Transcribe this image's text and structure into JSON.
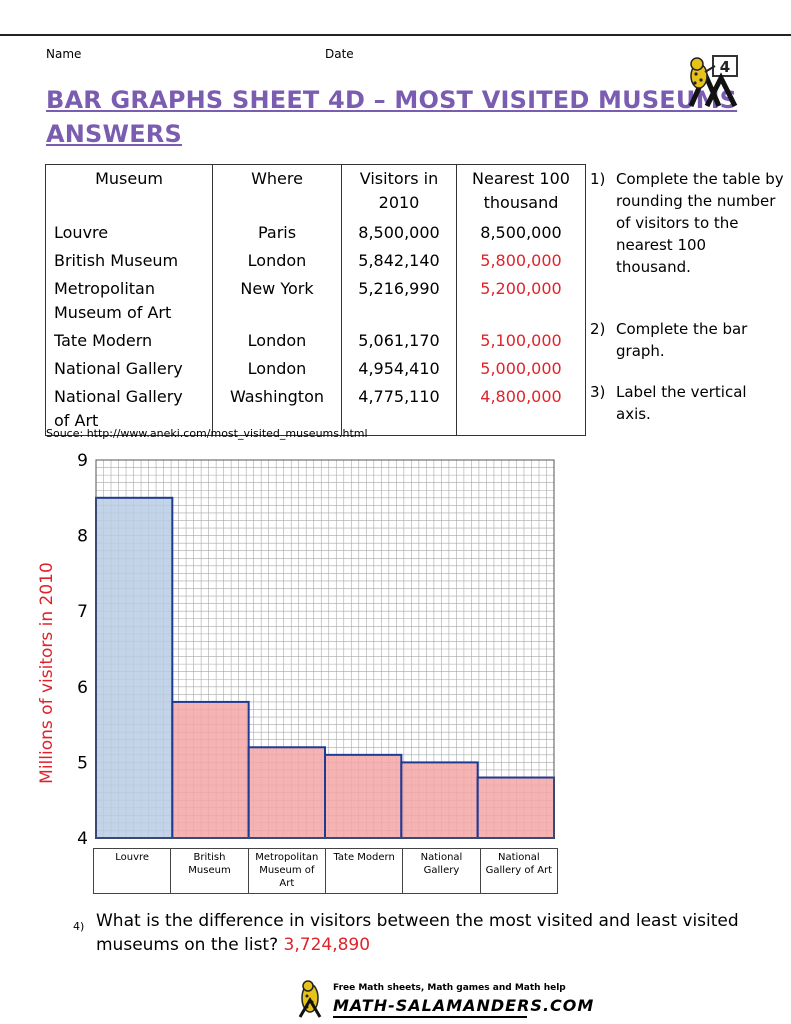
{
  "header": {
    "name_label": "Name",
    "date_label": "Date",
    "title_line1": "BAR GRAPHS SHEET 4D – MOST VISITED MUSEUMS",
    "title_line2": "ANSWERS",
    "logo_badge": "4"
  },
  "table": {
    "headers": {
      "museum": "Museum",
      "where": "Where",
      "visitors_line1": "Visitors in",
      "visitors_line2": "2010",
      "nearest_line1": "Nearest 100",
      "nearest_line2": "thousand"
    },
    "rows": [
      {
        "museum_line1": "Louvre",
        "museum_line2": "",
        "where": "Paris",
        "visitors": "8,500,000",
        "nearest": "8,500,000",
        "nearest_is_answer": false
      },
      {
        "museum_line1": "British Museum",
        "museum_line2": "",
        "where": "London",
        "visitors": "5,842,140",
        "nearest": "5,800,000",
        "nearest_is_answer": true
      },
      {
        "museum_line1": "Metropolitan",
        "museum_line2": "Museum of Art",
        "where": "New York",
        "visitors": "5,216,990",
        "nearest": "5,200,000",
        "nearest_is_answer": true
      },
      {
        "museum_line1": "Tate Modern",
        "museum_line2": "",
        "where": "London",
        "visitors": "5,061,170",
        "nearest": "5,100,000",
        "nearest_is_answer": true
      },
      {
        "museum_line1": "National Gallery",
        "museum_line2": "",
        "where": "London",
        "visitors": "4,954,410",
        "nearest": "5,000,000",
        "nearest_is_answer": true
      },
      {
        "museum_line1": "National Gallery",
        "museum_line2": "of Art",
        "where": "Washington",
        "visitors": "4,775,110",
        "nearest": "4,800,000",
        "nearest_is_answer": true
      }
    ]
  },
  "instructions": [
    {
      "num": "1)",
      "text": "Complete the table by rounding the number of visitors to the nearest 100 thousand."
    },
    {
      "num": "2)",
      "text": "Complete the bar graph."
    },
    {
      "num": "3)",
      "text": "Label the vertical axis."
    }
  ],
  "source": "Souce: http://www.aneki.com/most_visited_museums.html",
  "chart_data": {
    "type": "bar",
    "categories": [
      "Louvre",
      "British Museum",
      "Metropolitan Museum of Art",
      "Tate Modern",
      "National Gallery",
      "National Gallery of Art"
    ],
    "category_labels": [
      [
        "Louvre"
      ],
      [
        "British",
        "Museum"
      ],
      [
        "Metropolitan",
        "Museum of",
        "Art"
      ],
      [
        "Tate Modern"
      ],
      [
        "National",
        "Gallery"
      ],
      [
        "National",
        "Gallery of Art"
      ]
    ],
    "values": [
      8.5,
      5.8,
      5.2,
      5.1,
      5.0,
      4.8
    ],
    "ylabel": "Millions of visitors in 2010",
    "ylim": [
      4,
      9
    ],
    "yticks": [
      "4",
      "5",
      "6",
      "7",
      "8",
      "9"
    ],
    "grid": true,
    "grid_minor_step": 0.1,
    "colors": {
      "first_bar": "#b8cce4",
      "answer_bars": "#f4a6a6",
      "bar_border": "#1f3a93",
      "grid": "#a8a8a8"
    }
  },
  "question4": {
    "num": "4)",
    "text": "What is the difference in visitors between the most visited and least visited museums on the list?",
    "answer": "3,724,890"
  },
  "footer": {
    "tagline": "Free Math sheets, Math games and Math help",
    "brand": "MATH-SALAMANDERS.COM"
  }
}
